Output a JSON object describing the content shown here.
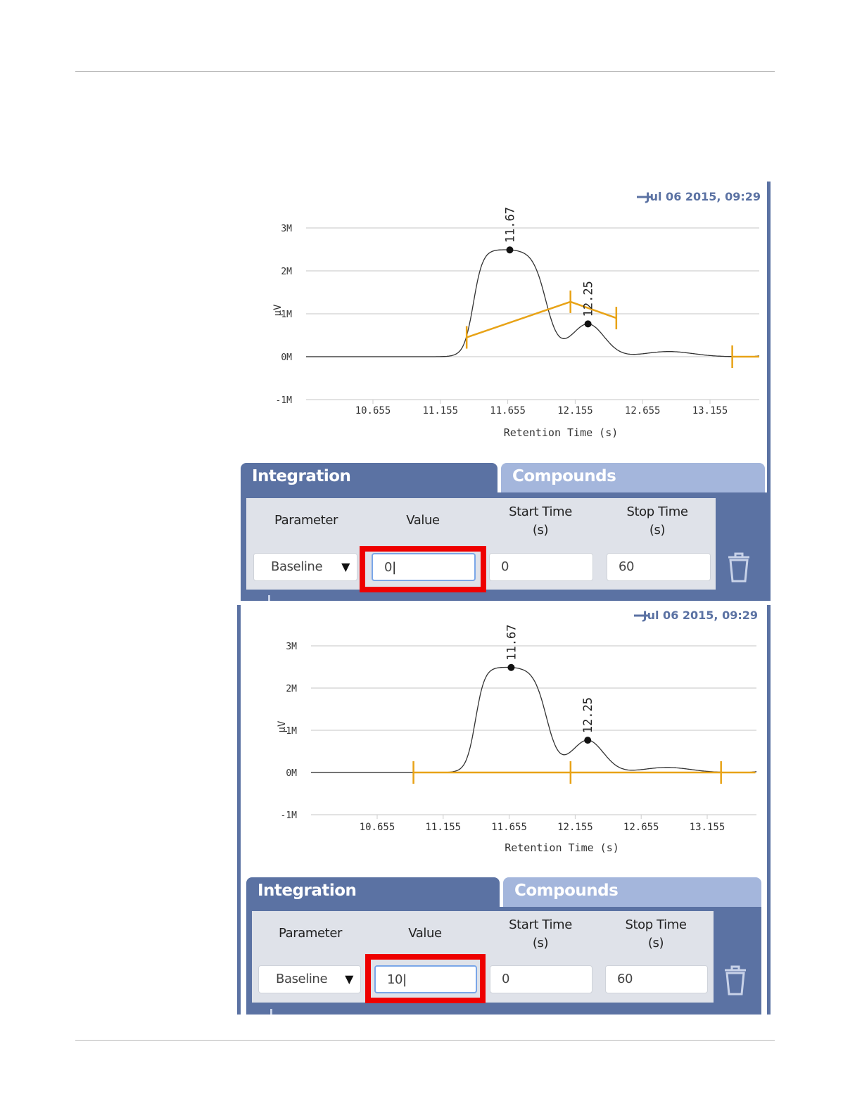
{
  "colors": {
    "panel_blue": "#5b72a3",
    "tab_inactive": "#a4b6dc",
    "baseline_orange": "#e8a317",
    "highlight_red": "#ee0000"
  },
  "screens": [
    {
      "chart_data": {
        "type": "line",
        "legend": "Jul 06 2015, 09:29",
        "legend_position": "top-right",
        "xlabel": "Retention Time (s)",
        "ylabel": "µV",
        "x_ticks": [
          "10.655",
          "11.155",
          "11.655",
          "12.155",
          "12.655",
          "13.155"
        ],
        "y_ticks": [
          "3M",
          "2M",
          "1M",
          "0M",
          "-1M"
        ],
        "ylim": [
          -1,
          3
        ],
        "grid": true,
        "peaks": [
          {
            "label": "11.67",
            "x": 11.67,
            "y": 2.5
          },
          {
            "label": "12.25",
            "x": 12.25,
            "y": 1.38
          }
        ],
        "baseline_segments": [
          {
            "x1": 11.35,
            "y1": 0.45,
            "x2": 12.12,
            "y2": 1.28
          },
          {
            "x1": 12.12,
            "y1": 1.28,
            "x2": 12.46,
            "y2": 0.9
          },
          {
            "x1": 13.32,
            "y1": 0.0,
            "x2": 13.52,
            "y2": 0.0
          }
        ],
        "baseline_markers": [
          11.35,
          12.12,
          12.46,
          13.32
        ]
      },
      "tabs": {
        "integration": "Integration",
        "compounds": "Compounds"
      },
      "table": {
        "headers": {
          "parameter": "Parameter",
          "value": "Value",
          "start_time": "Start Time",
          "start_unit": "(s)",
          "stop_time": "Stop Time",
          "stop_unit": "(s)"
        },
        "row": {
          "parameter": "Baseline",
          "value": "0",
          "start": "0",
          "stop": "60"
        }
      }
    },
    {
      "chart_data": {
        "type": "line",
        "legend": "Jul 06 2015, 09:29",
        "legend_position": "top-right",
        "xlabel": "Retention Time (s)",
        "ylabel": "µV",
        "x_ticks": [
          "10.655",
          "11.155",
          "11.655",
          "12.155",
          "12.655",
          "13.155"
        ],
        "y_ticks": [
          "3M",
          "2M",
          "1M",
          "0M",
          "-1M"
        ],
        "ylim": [
          -1,
          3
        ],
        "grid": true,
        "peaks": [
          {
            "label": "11.67",
            "x": 11.67,
            "y": 2.5
          },
          {
            "label": "12.25",
            "x": 12.25,
            "y": 1.38
          }
        ],
        "baseline_segments": [
          {
            "x1": 10.93,
            "y1": 0.0,
            "x2": 13.52,
            "y2": 0.0
          }
        ],
        "baseline_markers": [
          10.93,
          12.12,
          13.26
        ]
      },
      "tabs": {
        "integration": "Integration",
        "compounds": "Compounds"
      },
      "table": {
        "headers": {
          "parameter": "Parameter",
          "value": "Value",
          "start_time": "Start Time",
          "start_unit": "(s)",
          "stop_time": "Stop Time",
          "stop_unit": "(s)"
        },
        "row": {
          "parameter": "Baseline",
          "value": "10",
          "start": "0",
          "stop": "60"
        }
      }
    }
  ]
}
